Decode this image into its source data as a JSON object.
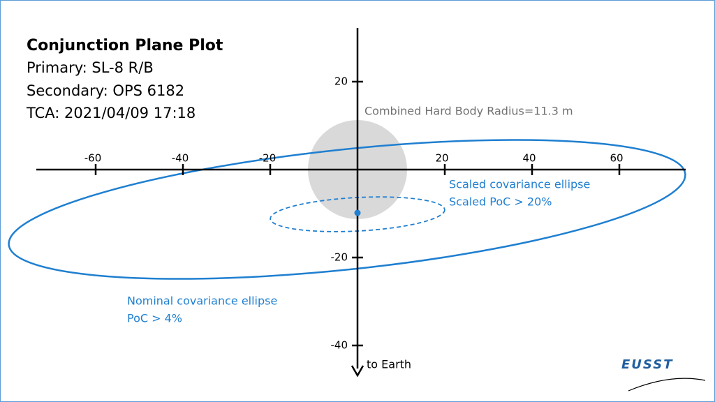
{
  "title": "Conjunction Plane Plot",
  "info": [
    "Primary: SL-8 R/B",
    "Secondary: OPS 6182",
    "TCA: 2021/04/09 17:18"
  ],
  "axes": {
    "xticks": [
      -60,
      -40,
      -20,
      20,
      40,
      60
    ],
    "yticks": [
      20,
      -20,
      -40
    ],
    "down_label": "to Earth"
  },
  "hard_body": {
    "label": "Combined Hard Body Radius=11.3 m"
  },
  "scaled": {
    "lines": [
      "Scaled covariance ellipse",
      "Scaled PoC > 20%"
    ]
  },
  "nominal": {
    "lines": [
      "Nominal covariance ellipse",
      "PoC > 4%"
    ]
  },
  "logo": "EUSST"
}
